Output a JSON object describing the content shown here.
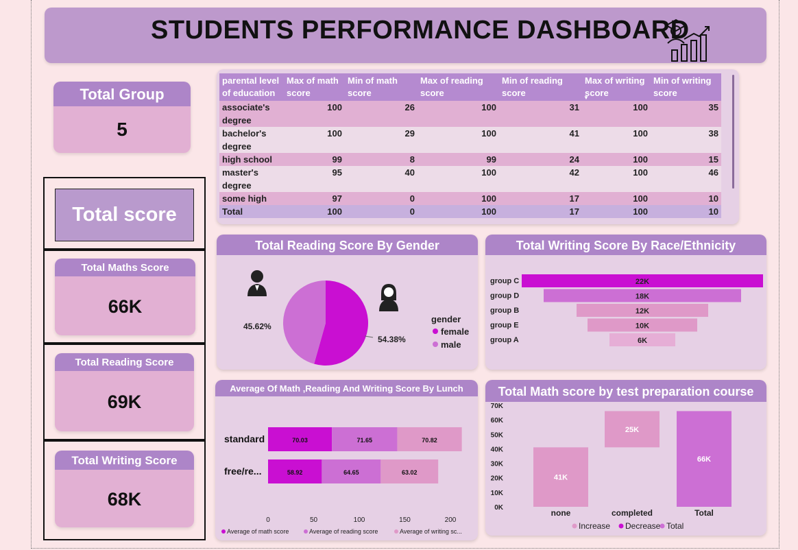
{
  "dashboard": {
    "title": "STUDENTS PERFORMANCE DASHBOARD"
  },
  "kpis": {
    "total_group": {
      "label": "Total Group",
      "value": "5"
    },
    "total_score": {
      "label": "Total score"
    },
    "maths": {
      "label": "Total Maths Score",
      "value": "66K"
    },
    "reading": {
      "label": "Total Reading Score",
      "value": "69K"
    },
    "writing": {
      "label": "Total Writing Score",
      "value": "68K"
    }
  },
  "table": {
    "headers": [
      "parental level of education",
      "Max of math score",
      "Min of math score",
      "Max of reading score",
      "Min of reading score",
      "Max of writing score",
      "Min of writing score"
    ],
    "rows": [
      [
        "associate's degree",
        "100",
        "26",
        "100",
        "31",
        "100",
        "35"
      ],
      [
        "bachelor's degree",
        "100",
        "29",
        "100",
        "41",
        "100",
        "38"
      ],
      [
        "high school",
        "99",
        "8",
        "99",
        "24",
        "100",
        "15"
      ],
      [
        "master's degree",
        "95",
        "40",
        "100",
        "42",
        "100",
        "46"
      ],
      [
        "some high",
        "97",
        "0",
        "100",
        "17",
        "100",
        "10"
      ]
    ],
    "total": [
      "Total",
      "100",
      "0",
      "100",
      "17",
      "100",
      "10"
    ]
  },
  "colors": {
    "magenta": "#c90fd2",
    "orchid": "#cc6fd4",
    "pink": "#df99c8",
    "light_pink": "#e6aed6",
    "header": "#ad85c8"
  },
  "chart_data": [
    {
      "type": "pie",
      "title": "Total Reading Score By Gender",
      "legend_title": "gender",
      "categories": [
        "female",
        "male"
      ],
      "values": [
        54.38,
        45.62
      ],
      "labels": [
        "54.38%",
        "45.62%"
      ],
      "colors": [
        "#c90fd2",
        "#cc6fd4"
      ]
    },
    {
      "type": "bar",
      "title": "Total Writing Score By Race/Ethnicity",
      "categories": [
        "group C",
        "group D",
        "group B",
        "group E",
        "group A"
      ],
      "values": [
        22,
        18,
        12,
        10,
        6
      ],
      "labels": [
        "22K",
        "18K",
        "12K",
        "10K",
        "6K"
      ]
    },
    {
      "type": "bar",
      "title": "Average Of Math ,Reading And Writing Score By Lunch",
      "categories": [
        "standard",
        "free/re..."
      ],
      "series": [
        {
          "name": "Average of math score",
          "values": [
            70.03,
            58.92
          ]
        },
        {
          "name": "Average of reading score",
          "values": [
            71.65,
            64.65
          ]
        },
        {
          "name": "Average of writing sc...",
          "values": [
            70.82,
            63.02
          ]
        }
      ],
      "xticks": [
        "0",
        "50",
        "100",
        "150",
        "200"
      ],
      "xlim": [
        0,
        200
      ]
    },
    {
      "type": "bar",
      "title": "Total Math score by test preparation course",
      "categories": [
        "none",
        "completed",
        "Total"
      ],
      "values": [
        41,
        25,
        66
      ],
      "labels": [
        "41K",
        "25K",
        "66K"
      ],
      "yticks": [
        "0K",
        "10K",
        "20K",
        "30K",
        "40K",
        "50K",
        "60K",
        "70K"
      ],
      "ylim": [
        0,
        70
      ],
      "legend": [
        "Increase",
        "Decrease",
        "Total"
      ]
    }
  ]
}
